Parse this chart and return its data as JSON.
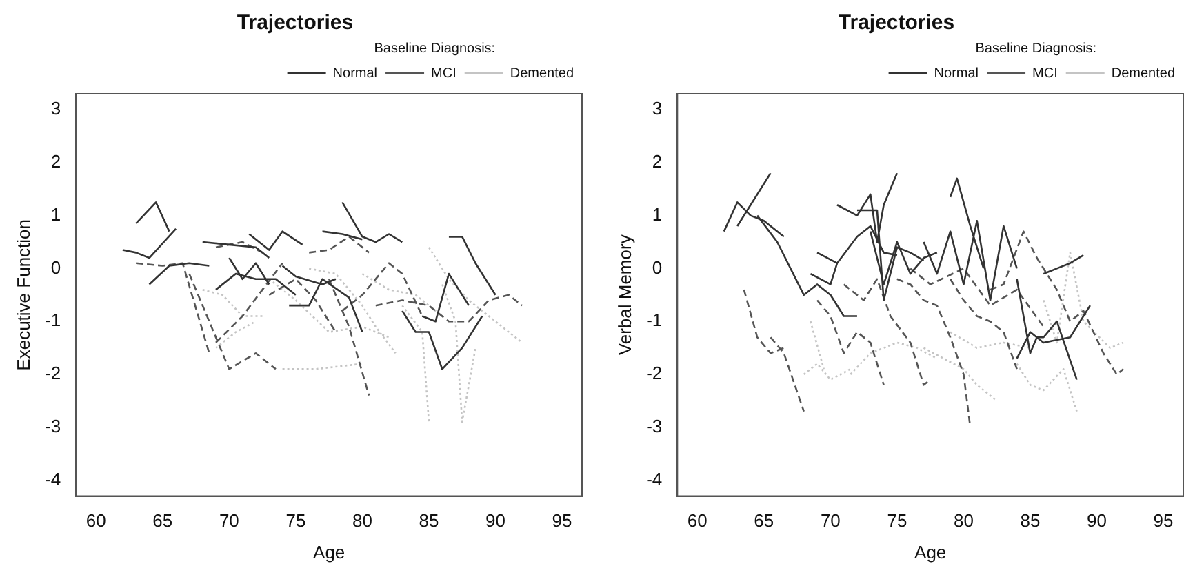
{
  "chart_data": [
    {
      "type": "line",
      "title": "Trajectories",
      "xlabel": "Age",
      "ylabel": "Executive Function",
      "legend_title": "Baseline Diagnosis:",
      "legend": "top right",
      "grid": false,
      "marker": "none",
      "xlim": [
        58.5,
        96.5
      ],
      "ylim": [
        -4.3,
        3.3
      ],
      "xticks": [
        60,
        65,
        70,
        75,
        80,
        85,
        90,
        95
      ],
      "yticks": [
        -4,
        -3,
        -2,
        -1,
        0,
        1,
        2,
        3
      ],
      "series": [
        {
          "name": "Normal",
          "color": "#333333",
          "line_style": "solid",
          "x": [
            63,
            64.5,
            65.5,
            null,
            62,
            63,
            64,
            66,
            null,
            64,
            65.5,
            67,
            68.5,
            null,
            68,
            70,
            72,
            73,
            null,
            69,
            70.5,
            72,
            73.5,
            75,
            null,
            70,
            71,
            72,
            73,
            null,
            71.5,
            73,
            74,
            75.5,
            null,
            74,
            75,
            77,
            78,
            null,
            74.5,
            76,
            77,
            79,
            80,
            null,
            78.5,
            80,
            81,
            82,
            83,
            null,
            77,
            78.5,
            80,
            null,
            83,
            84,
            85,
            86,
            87.5,
            89,
            null,
            84.5,
            85.5,
            86.5,
            88,
            null,
            86.5,
            87.5,
            88.5,
            90
          ],
          "values": [
            0.85,
            1.25,
            0.7,
            null,
            0.35,
            0.3,
            0.2,
            0.75,
            null,
            -0.3,
            0.05,
            0.1,
            0.05,
            null,
            0.5,
            0.45,
            0.4,
            0.2,
            null,
            -0.4,
            -0.1,
            -0.2,
            -0.2,
            -0.5,
            null,
            0.2,
            -0.2,
            0.1,
            -0.3,
            null,
            0.65,
            0.35,
            0.7,
            0.45,
            null,
            0.05,
            -0.15,
            -0.3,
            -0.2,
            null,
            -0.7,
            -0.7,
            -0.2,
            -0.55,
            -1.2,
            null,
            1.25,
            0.6,
            0.5,
            0.65,
            0.5,
            null,
            0.7,
            0.65,
            0.55,
            null,
            -0.8,
            -1.2,
            -1.2,
            -1.9,
            -1.5,
            -0.9,
            null,
            -0.9,
            -1.0,
            -0.1,
            -0.7,
            null,
            0.6,
            0.6,
            0.1,
            -0.5
          ]
        },
        {
          "name": "MCI",
          "color": "#555555",
          "line_style": "dashed",
          "x": [
            63,
            65,
            66.5,
            68.5,
            null,
            67,
            68.5,
            70,
            72,
            73.5,
            null,
            69,
            71,
            72.5,
            74,
            null,
            69,
            71,
            72.5,
            null,
            73,
            75,
            76.5,
            78,
            null,
            76,
            77.5,
            79,
            80.5,
            null,
            77.5,
            79,
            80.5,
            null,
            78.5,
            80,
            82,
            83,
            84.5,
            null,
            81,
            83,
            85,
            86.5,
            88,
            89.5,
            91,
            92
          ],
          "values": [
            0.1,
            0.05,
            0.1,
            -1.6,
            null,
            -0.1,
            -1.0,
            -1.9,
            -1.6,
            -1.9,
            null,
            -1.4,
            -0.9,
            -0.4,
            0.1,
            null,
            0.4,
            0.5,
            0.3,
            null,
            -0.5,
            -0.2,
            -0.6,
            -1.2,
            null,
            0.3,
            0.35,
            0.6,
            0.3,
            null,
            -0.2,
            -1.1,
            -2.4,
            null,
            -0.8,
            -0.5,
            0.1,
            -0.1,
            -0.9,
            null,
            -0.7,
            -0.6,
            -0.7,
            -1.0,
            -1.0,
            -0.6,
            -0.5,
            -0.7
          ]
        },
        {
          "name": "Demented",
          "color": "#c4c4c4",
          "line_style": "dotted",
          "x": [
            68,
            69.5,
            71,
            72.5,
            null,
            69,
            70.5,
            72,
            null,
            74,
            76.5,
            80,
            null,
            73,
            75,
            77.5,
            80,
            82,
            null,
            76,
            78,
            80,
            81,
            82.5,
            null,
            83,
            84.5,
            85,
            null,
            86,
            87,
            87.5,
            88.5,
            null,
            85,
            86.5,
            88,
            90,
            92,
            null,
            80,
            82,
            84,
            86
          ],
          "values": [
            -0.4,
            -0.5,
            -0.9,
            -0.9,
            null,
            -1.5,
            -1.2,
            -1.0,
            null,
            -1.9,
            -1.9,
            -1.8,
            null,
            -0.2,
            -0.6,
            -1.2,
            -1.1,
            -1.3,
            null,
            0.0,
            -0.1,
            -0.7,
            -1.1,
            -1.6,
            null,
            -0.7,
            -1.2,
            -2.9,
            null,
            -0.3,
            -1.0,
            -2.9,
            -1.5,
            null,
            0.4,
            -0.2,
            -0.6,
            -1.0,
            -1.4,
            null,
            -0.1,
            -0.4,
            -0.5,
            -0.9
          ]
        }
      ]
    },
    {
      "type": "line",
      "title": "Trajectories",
      "xlabel": "Age",
      "ylabel": "Verbal Memory",
      "legend_title": "Baseline Diagnosis:",
      "legend": "top right",
      "grid": false,
      "marker": "none",
      "xlim": [
        58.5,
        96.5
      ],
      "ylim": [
        -4.3,
        3.3
      ],
      "xticks": [
        60,
        65,
        70,
        75,
        80,
        85,
        90,
        95
      ],
      "yticks": [
        -4,
        -3,
        -2,
        -1,
        0,
        1,
        2,
        3
      ],
      "series": [
        {
          "name": "Normal",
          "color": "#333333",
          "line_style": "solid",
          "x": [
            62,
            63,
            64,
            65,
            66.5,
            null,
            63,
            65.5,
            null,
            64.5,
            66,
            68,
            69,
            70,
            71,
            72,
            null,
            68.5,
            70,
            70.5,
            null,
            69,
            70.5,
            72,
            73,
            74,
            75,
            null,
            70.5,
            72,
            73,
            73.5,
            74,
            75,
            null,
            72,
            73.5,
            74,
            75,
            76,
            77,
            null,
            73,
            74,
            75,
            76,
            77,
            78,
            null,
            77,
            78,
            79,
            80,
            81,
            82,
            83,
            84,
            null,
            79,
            79.5,
            80.5,
            81.5,
            null,
            84,
            85,
            85.5,
            86,
            87,
            88.5,
            null,
            86,
            87,
            88,
            89,
            null,
            84,
            85,
            86,
            88,
            89.5
          ],
          "values": [
            0.7,
            1.25,
            1.0,
            0.9,
            0.6,
            null,
            0.8,
            1.8,
            null,
            1.0,
            0.5,
            -0.5,
            -0.3,
            -0.5,
            -0.9,
            -0.9,
            null,
            -0.1,
            -0.3,
            0.1,
            null,
            0.3,
            0.1,
            0.6,
            0.8,
            0.3,
            0.25,
            null,
            1.2,
            1.0,
            1.4,
            0.5,
            1.2,
            1.8,
            null,
            1.1,
            1.1,
            -0.6,
            0.4,
            0.3,
            0.15,
            null,
            0.7,
            -0.3,
            0.5,
            -0.1,
            0.2,
            0.3,
            null,
            0.5,
            -0.1,
            0.7,
            -0.3,
            0.9,
            -0.6,
            0.8,
            0.0,
            null,
            1.35,
            1.7,
            0.8,
            0.0,
            null,
            -0.2,
            -1.6,
            -1.3,
            -1.3,
            -1.0,
            -2.1,
            null,
            -0.1,
            0.0,
            0.1,
            0.25,
            null,
            -1.7,
            -1.2,
            -1.4,
            -1.3,
            -0.7
          ]
        },
        {
          "name": "MCI",
          "color": "#555555",
          "line_style": "dashed",
          "x": [
            63.5,
            64.5,
            65.5,
            66.5,
            null,
            65.5,
            66.5,
            68,
            null,
            69,
            70,
            71,
            72,
            73,
            74,
            null,
            71,
            72.5,
            73.5,
            74.5,
            76,
            77,
            77.5,
            null,
            75,
            76,
            77,
            78,
            79,
            80,
            80.5,
            null,
            79,
            80,
            81,
            82,
            83,
            84,
            null,
            82,
            83,
            84.5,
            85.5,
            87,
            88,
            89,
            90.5,
            91.5,
            92,
            null,
            76,
            77.5,
            80,
            82,
            84,
            86
          ],
          "values": [
            -0.4,
            -1.3,
            -1.6,
            -1.5,
            null,
            -1.3,
            -1.6,
            -2.7,
            null,
            -0.6,
            -0.9,
            -1.6,
            -1.2,
            -1.4,
            -2.2,
            null,
            -0.3,
            -0.6,
            -0.2,
            -0.9,
            -1.4,
            -2.2,
            -2.1,
            null,
            -0.2,
            -0.3,
            -0.6,
            -0.7,
            -1.3,
            -2.0,
            -3.0,
            null,
            -0.2,
            -0.6,
            -0.9,
            -1.0,
            -1.2,
            -1.9,
            null,
            -0.4,
            -0.3,
            0.7,
            0.2,
            -0.4,
            -1.0,
            -0.8,
            -1.6,
            -2.0,
            -1.9,
            null,
            0.0,
            -0.3,
            0.0,
            -0.7,
            -0.4,
            -1.1
          ]
        },
        {
          "name": "Demented",
          "color": "#c4c4c4",
          "line_style": "dotted",
          "x": [
            68,
            69,
            70,
            71.5,
            null,
            71.5,
            73,
            75,
            76.5,
            78,
            null,
            77,
            78.5,
            80,
            81,
            82.5,
            null,
            84,
            85,
            86,
            87.5,
            88.5,
            null,
            86,
            87,
            88,
            89,
            91,
            92,
            null,
            68.5,
            69.5,
            null,
            79,
            81,
            83,
            85
          ],
          "values": [
            -2.0,
            -1.8,
            -2.1,
            -1.9,
            null,
            -2.0,
            -1.6,
            -1.4,
            -1.5,
            -1.7,
            null,
            -1.5,
            -1.7,
            -1.9,
            -2.2,
            -2.5,
            null,
            -1.8,
            -2.2,
            -2.3,
            -1.9,
            -2.7,
            null,
            -0.6,
            -1.4,
            0.3,
            -1.0,
            -1.5,
            -1.4,
            null,
            -1.0,
            -1.9,
            null,
            -1.2,
            -1.5,
            -1.4,
            -1.5
          ]
        }
      ]
    }
  ]
}
